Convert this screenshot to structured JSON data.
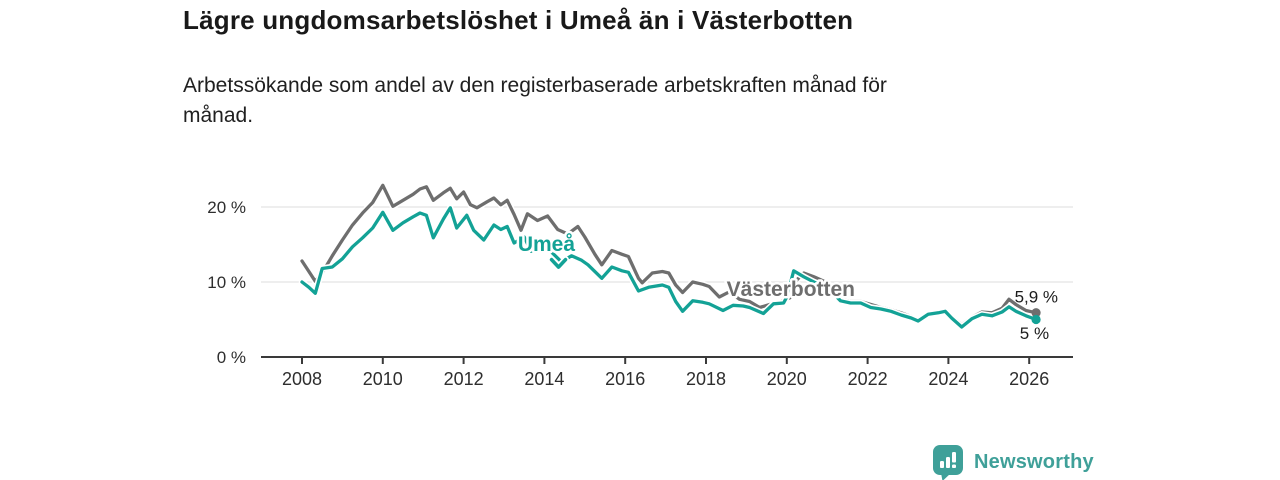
{
  "header": {
    "title": "Lägre ungdomsarbetslöshet i Umeå än i Västerbotten",
    "subtitle_line1": "Arbetssökande som andel av den registerbaserade arbetskraften månad för",
    "subtitle_line2": "månad."
  },
  "chart_data": {
    "type": "line",
    "title": "Lägre ungdomsarbetslöshet i Umeå än i Västerbotten",
    "subtitle": "Arbetssökande som andel av den registerbaserade arbetskraften månad för månad.",
    "x_unit": "decimal-year (monthly series)",
    "y_unit": "percent of registered labour force",
    "xlim": [
      2007.0,
      2027.1
    ],
    "ylim": [
      0,
      24
    ],
    "grid": "horizontal-only",
    "legend": "inline series labels on chart",
    "axes": {
      "yticks": [
        {
          "value": 0,
          "label": "0 %"
        },
        {
          "value": 10,
          "label": "10 %"
        },
        {
          "value": 20,
          "label": "20 %"
        }
      ],
      "xticks": [
        2008,
        2010,
        2012,
        2014,
        2016,
        2018,
        2020,
        2022,
        2024,
        2026
      ]
    },
    "series": [
      {
        "id": "vasterbotten",
        "name": "Västerbotten",
        "color": "#6E6E6E",
        "end_label": "5,9 %",
        "end_label_side": "above",
        "last_value_percent": 5.9,
        "points": [
          [
            2008.0,
            12.8
          ],
          [
            2008.17,
            11.4
          ],
          [
            2008.33,
            10.1
          ],
          [
            2008.5,
            11.2
          ],
          [
            2008.75,
            13.5
          ],
          [
            2009.0,
            15.6
          ],
          [
            2009.25,
            17.6
          ],
          [
            2009.5,
            19.2
          ],
          [
            2009.75,
            20.6
          ],
          [
            2010.0,
            22.9
          ],
          [
            2010.25,
            20.1
          ],
          [
            2010.5,
            20.9
          ],
          [
            2010.75,
            21.7
          ],
          [
            2010.92,
            22.4
          ],
          [
            2011.08,
            22.7
          ],
          [
            2011.25,
            20.9
          ],
          [
            2011.5,
            21.9
          ],
          [
            2011.67,
            22.5
          ],
          [
            2011.83,
            21.1
          ],
          [
            2012.0,
            22.0
          ],
          [
            2012.17,
            20.3
          ],
          [
            2012.33,
            19.9
          ],
          [
            2012.58,
            20.7
          ],
          [
            2012.75,
            21.2
          ],
          [
            2012.92,
            20.3
          ],
          [
            2013.08,
            20.9
          ],
          [
            2013.25,
            19.0
          ],
          [
            2013.42,
            16.9
          ],
          [
            2013.58,
            19.1
          ],
          [
            2013.83,
            18.2
          ],
          [
            2014.08,
            18.8
          ],
          [
            2014.33,
            17.0
          ],
          [
            2014.58,
            16.4
          ],
          [
            2014.83,
            17.4
          ],
          [
            2015.0,
            16.0
          ],
          [
            2015.25,
            13.7
          ],
          [
            2015.42,
            12.3
          ],
          [
            2015.67,
            14.2
          ],
          [
            2015.92,
            13.7
          ],
          [
            2016.08,
            13.4
          ],
          [
            2016.33,
            10.5
          ],
          [
            2016.42,
            9.9
          ],
          [
            2016.67,
            11.2
          ],
          [
            2016.92,
            11.4
          ],
          [
            2017.08,
            11.2
          ],
          [
            2017.25,
            9.6
          ],
          [
            2017.42,
            8.6
          ],
          [
            2017.67,
            10.0
          ],
          [
            2017.92,
            9.7
          ],
          [
            2018.08,
            9.4
          ],
          [
            2018.33,
            8.0
          ],
          [
            2018.58,
            8.7
          ],
          [
            2018.83,
            7.7
          ],
          [
            2019.08,
            7.4
          ],
          [
            2019.33,
            6.6
          ],
          [
            2019.58,
            7.0
          ],
          [
            2019.83,
            7.3
          ],
          [
            2020.08,
            7.9
          ],
          [
            2020.25,
            10.3
          ],
          [
            2020.42,
            11.2
          ],
          [
            2020.67,
            10.7
          ],
          [
            2020.92,
            10.1
          ],
          [
            2021.08,
            9.4
          ],
          [
            2021.33,
            7.7
          ],
          [
            2021.58,
            7.4
          ],
          [
            2021.83,
            7.4
          ],
          [
            2022.08,
            7.0
          ],
          [
            2022.33,
            6.6
          ],
          [
            2022.58,
            6.3
          ],
          [
            2022.83,
            5.9
          ],
          [
            2023.08,
            5.4
          ],
          [
            2023.25,
            5.0
          ],
          [
            2023.5,
            5.8
          ],
          [
            2023.75,
            6.0
          ],
          [
            2023.92,
            6.2
          ],
          [
            2024.08,
            5.4
          ],
          [
            2024.33,
            4.3
          ],
          [
            2024.58,
            5.3
          ],
          [
            2024.83,
            6.0
          ],
          [
            2025.08,
            5.9
          ],
          [
            2025.33,
            6.5
          ],
          [
            2025.5,
            7.7
          ],
          [
            2025.67,
            7.0
          ],
          [
            2025.92,
            6.2
          ],
          [
            2026.17,
            5.9
          ]
        ]
      },
      {
        "id": "umea",
        "name": "Umeå",
        "color": "#13A296",
        "end_label": "5 %",
        "end_label_side": "below",
        "last_value_percent": 5.0,
        "points": [
          [
            2008.0,
            10.0
          ],
          [
            2008.17,
            9.3
          ],
          [
            2008.33,
            8.5
          ],
          [
            2008.5,
            11.8
          ],
          [
            2008.75,
            12.0
          ],
          [
            2009.0,
            13.1
          ],
          [
            2009.25,
            14.7
          ],
          [
            2009.5,
            15.9
          ],
          [
            2009.75,
            17.2
          ],
          [
            2010.0,
            19.3
          ],
          [
            2010.25,
            16.9
          ],
          [
            2010.5,
            17.9
          ],
          [
            2010.75,
            18.7
          ],
          [
            2010.92,
            19.2
          ],
          [
            2011.08,
            18.9
          ],
          [
            2011.25,
            15.9
          ],
          [
            2011.5,
            18.4
          ],
          [
            2011.67,
            19.9
          ],
          [
            2011.83,
            17.2
          ],
          [
            2012.08,
            18.9
          ],
          [
            2012.25,
            16.9
          ],
          [
            2012.5,
            15.6
          ],
          [
            2012.75,
            17.6
          ],
          [
            2012.92,
            17.0
          ],
          [
            2013.08,
            17.4
          ],
          [
            2013.25,
            15.2
          ],
          [
            2013.5,
            16.0
          ],
          [
            2013.67,
            14.1
          ],
          [
            2013.92,
            15.2
          ],
          [
            2014.08,
            14.5
          ],
          [
            2014.42,
            12.7
          ],
          [
            2014.67,
            13.5
          ],
          [
            2014.92,
            12.9
          ],
          [
            2015.08,
            12.3
          ],
          [
            2015.42,
            10.5
          ],
          [
            2015.67,
            12.0
          ],
          [
            2015.92,
            11.5
          ],
          [
            2016.08,
            11.3
          ],
          [
            2016.33,
            8.8
          ],
          [
            2016.58,
            9.3
          ],
          [
            2016.92,
            9.6
          ],
          [
            2017.08,
            9.3
          ],
          [
            2017.25,
            7.4
          ],
          [
            2017.42,
            6.1
          ],
          [
            2017.67,
            7.5
          ],
          [
            2017.92,
            7.3
          ],
          [
            2018.08,
            7.1
          ],
          [
            2018.42,
            6.2
          ],
          [
            2018.67,
            6.9
          ],
          [
            2018.92,
            6.8
          ],
          [
            2019.08,
            6.6
          ],
          [
            2019.42,
            5.8
          ],
          [
            2019.67,
            7.1
          ],
          [
            2019.92,
            7.2
          ],
          [
            2020.0,
            8.0
          ],
          [
            2020.17,
            11.5
          ],
          [
            2020.42,
            10.7
          ],
          [
            2020.67,
            10.0
          ],
          [
            2020.92,
            9.4
          ],
          [
            2021.08,
            8.9
          ],
          [
            2021.33,
            7.5
          ],
          [
            2021.58,
            7.2
          ],
          [
            2021.83,
            7.2
          ],
          [
            2022.08,
            6.6
          ],
          [
            2022.33,
            6.4
          ],
          [
            2022.58,
            6.1
          ],
          [
            2022.83,
            5.6
          ],
          [
            2023.08,
            5.2
          ],
          [
            2023.25,
            4.8
          ],
          [
            2023.5,
            5.7
          ],
          [
            2023.75,
            5.9
          ],
          [
            2023.92,
            6.1
          ],
          [
            2024.08,
            5.2
          ],
          [
            2024.33,
            4.0
          ],
          [
            2024.58,
            5.1
          ],
          [
            2024.83,
            5.7
          ],
          [
            2025.08,
            5.5
          ],
          [
            2025.33,
            6.0
          ],
          [
            2025.5,
            6.7
          ],
          [
            2025.67,
            6.1
          ],
          [
            2025.92,
            5.5
          ],
          [
            2026.17,
            5.0
          ]
        ]
      }
    ],
    "annotations": [
      {
        "id": "umea",
        "text": "Umeå",
        "x": 2014.05,
        "y": 15.05,
        "color": "#13A296",
        "arrow": {
          "x": 2014.35,
          "y": 12.45
        }
      },
      {
        "id": "vasterbotten",
        "text": "Västerbotten",
        "x": 2020.1,
        "y": 9.05,
        "color": "#6E6E6E"
      }
    ],
    "style": {
      "grid_color": "#DCDCDC",
      "axis_color": "#3A3A3A",
      "tick_label_color": "#2E2E2E",
      "value_label_color": "#1C1C1C",
      "background": "#FFFFFF"
    }
  },
  "footer": {
    "brand": "Newsworthy",
    "brand_color": "#3FA099",
    "logo_icon": "bar-chart-speech-bubble-icon"
  }
}
